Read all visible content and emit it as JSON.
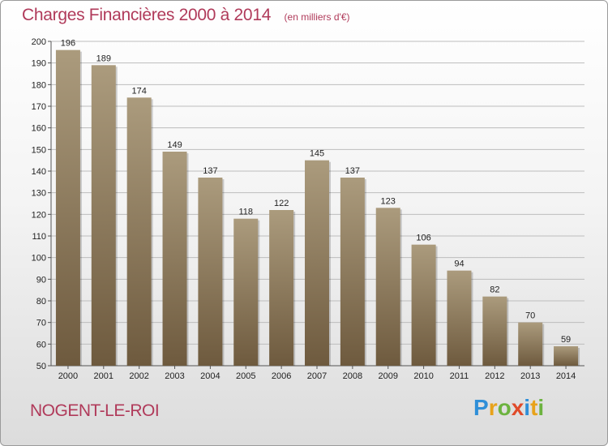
{
  "title": "Charges Financières 2000 à 2014",
  "subtitle": "(en milliers d'€)",
  "location": "NOGENT-LE-ROI",
  "logo": {
    "text": "Proxiti",
    "letters": [
      {
        "char": "P",
        "color": "#2f8fd8"
      },
      {
        "char": "r",
        "color": "#e8a21a"
      },
      {
        "char": "o",
        "color": "#6cb33f"
      },
      {
        "char": "x",
        "color": "#e04b2a"
      },
      {
        "char": "i",
        "color": "#2f8fd8"
      },
      {
        "char": "t",
        "color": "#e8a21a"
      },
      {
        "char": "i",
        "color": "#6cb33f"
      }
    ]
  },
  "colors": {
    "bar_top": "#ab9b7d",
    "bar_bottom": "#6e5a3e",
    "title": "#b03a5a",
    "grid": "#bdbdbd"
  },
  "chart_data": {
    "type": "bar",
    "categories": [
      "2000",
      "2001",
      "2002",
      "2003",
      "2004",
      "2005",
      "2006",
      "2007",
      "2008",
      "2009",
      "2010",
      "2011",
      "2012",
      "2013",
      "2014"
    ],
    "values": [
      196,
      189,
      174,
      149,
      137,
      118,
      122,
      145,
      137,
      123,
      106,
      94,
      82,
      70,
      59
    ],
    "ylim": [
      50,
      200
    ],
    "yticks": [
      50,
      60,
      70,
      80,
      90,
      100,
      110,
      120,
      130,
      140,
      150,
      160,
      170,
      180,
      190,
      200
    ],
    "grid": true
  }
}
